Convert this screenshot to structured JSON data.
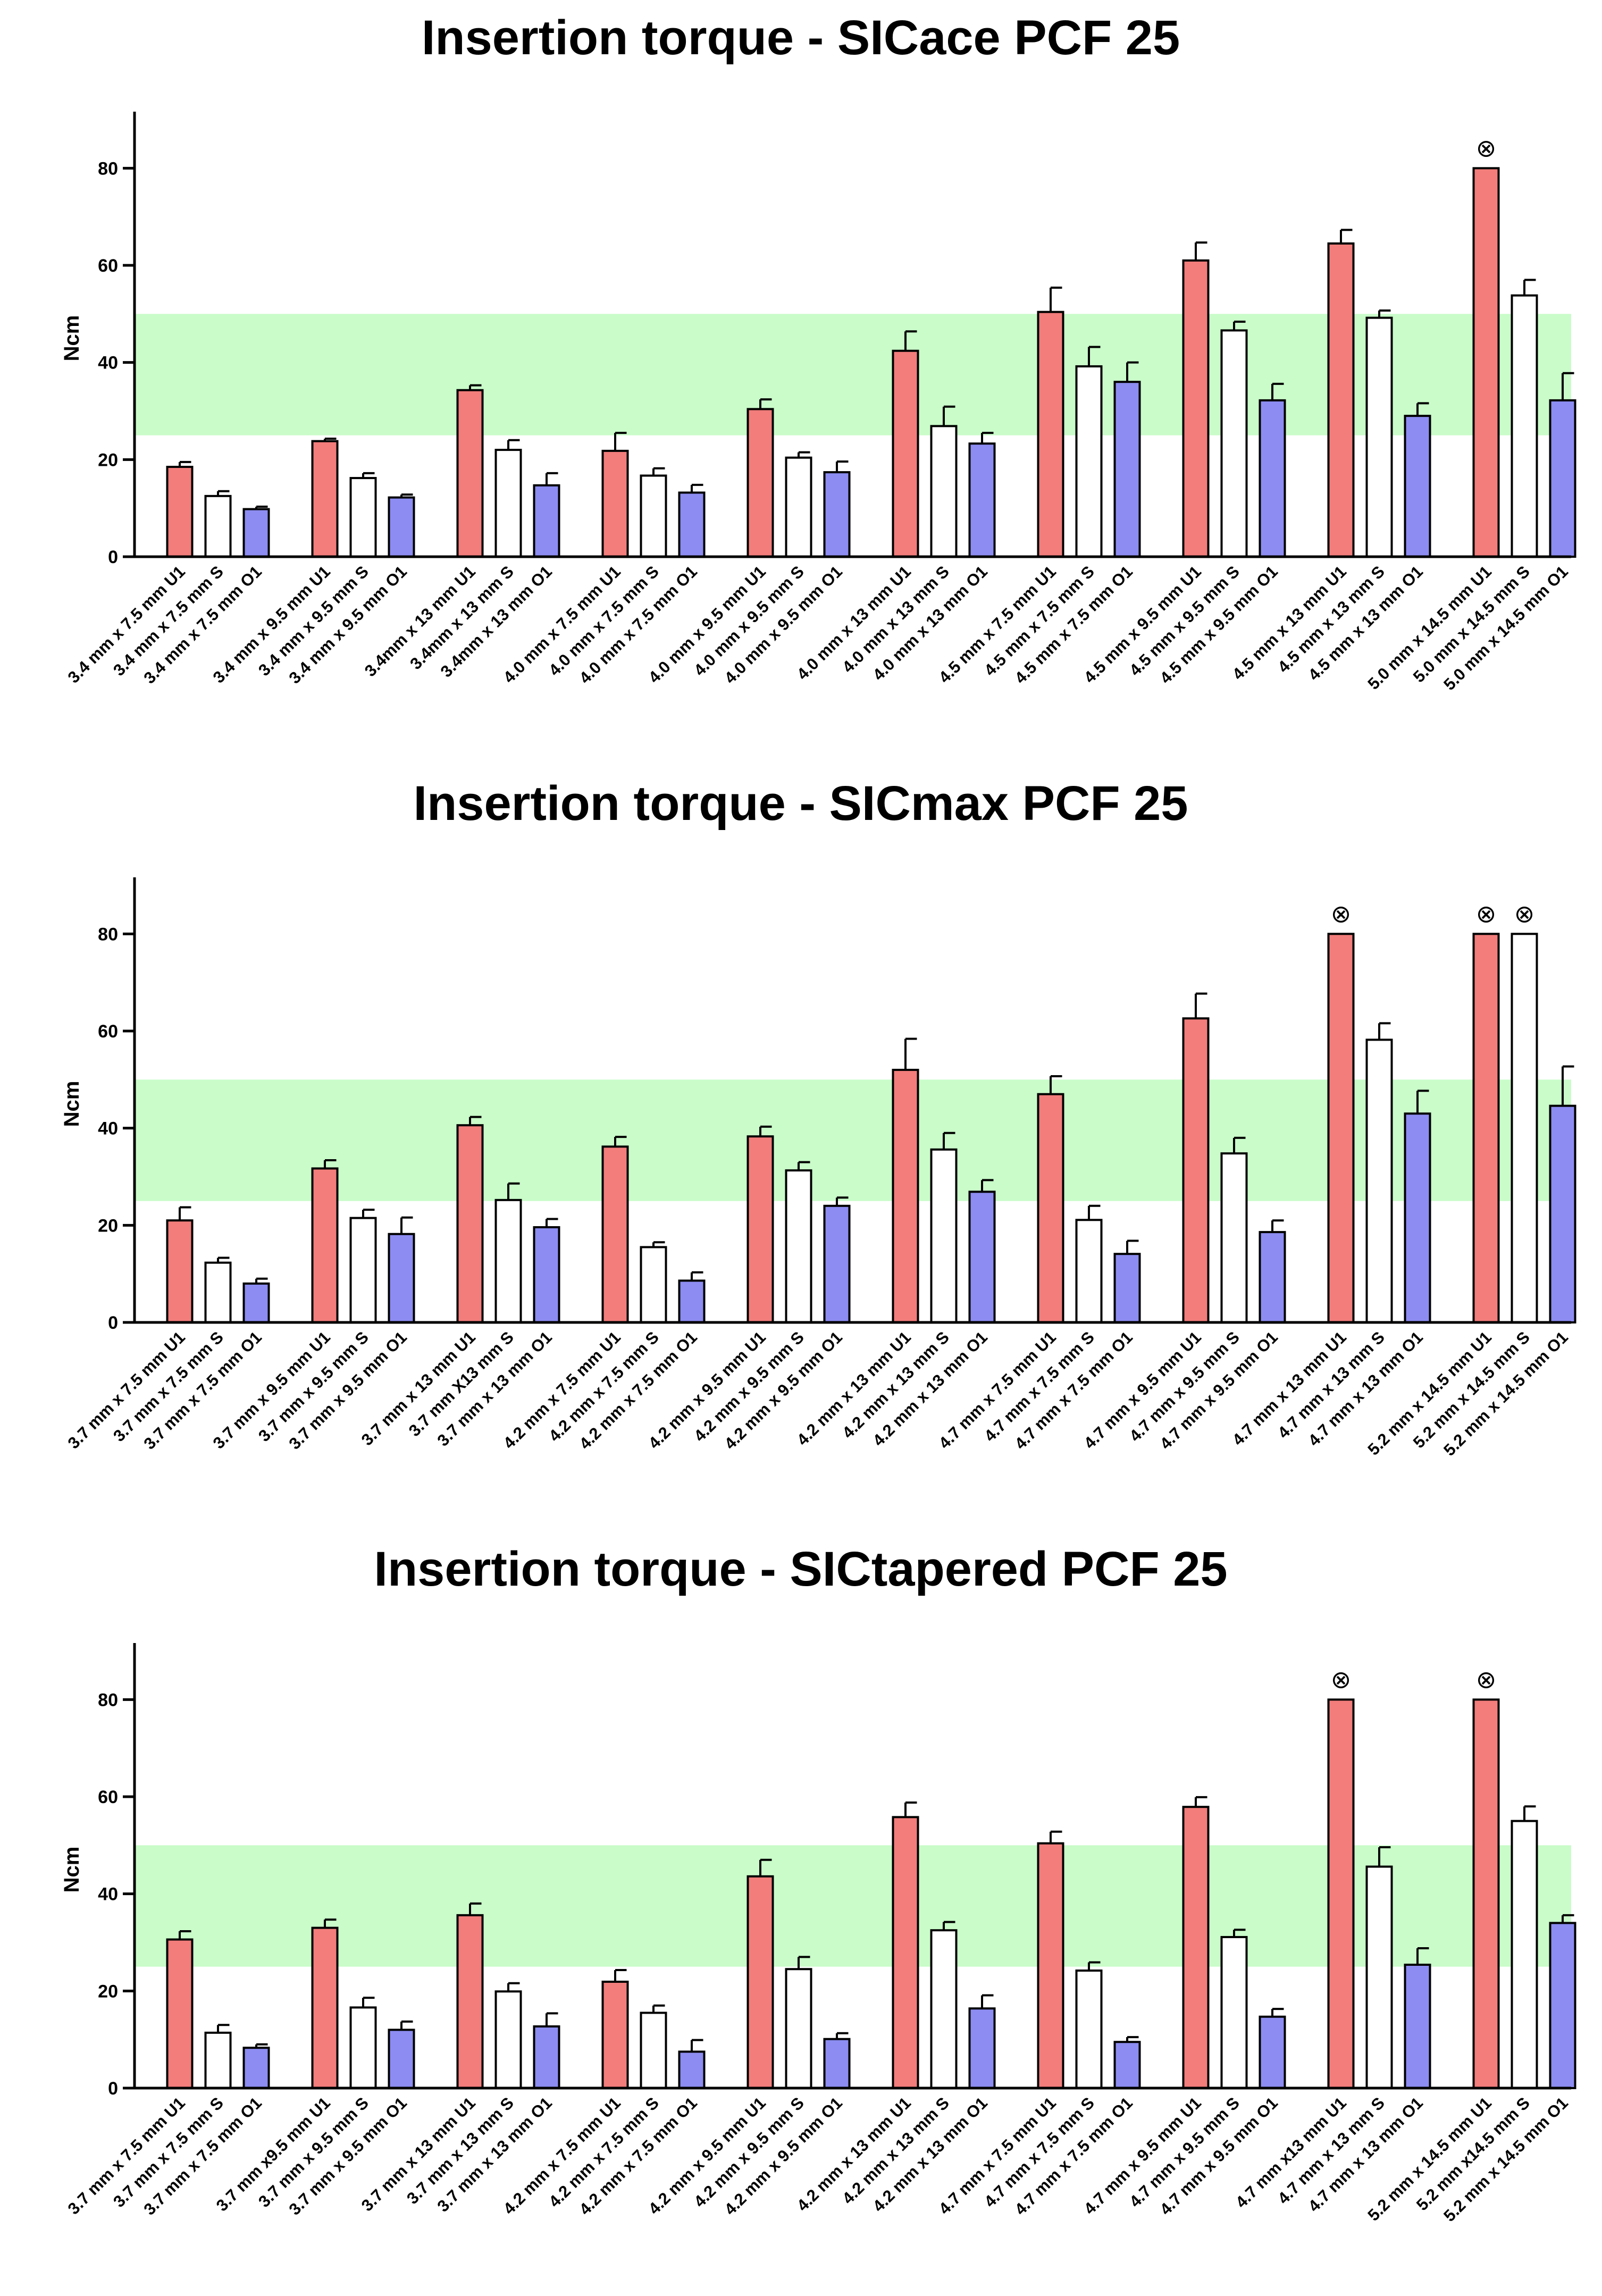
{
  "chart_data": [
    {
      "type": "bar",
      "title": "Insertion torque - SICace PCF 25",
      "ylabel": "Ncm",
      "ylim": [
        0,
        90
      ],
      "yticks": [
        0,
        20,
        40,
        60,
        80
      ],
      "band": [
        25,
        50
      ],
      "colors": {
        "U1": "#f27d7b",
        "S": "#ffffff",
        "O1": "#8c8cf2",
        "band": "#c9fcc9"
      },
      "categories": [
        "3.4 mm x 7.5 mm U1",
        "3.4 mm x 7.5 mm S",
        "3.4 mm x 7.5 mm O1",
        "3.4 mm x 9.5 mm U1",
        "3.4 mm x 9.5 mm S",
        "3.4 mm x 9.5 mm O1",
        "3.4mm x 13 mm U1",
        "3.4mm x 13 mm S",
        "3.4mm x 13 mm O1",
        "4.0 mm x 7.5 mm U1",
        "4.0 mm x 7.5 mm S",
        "4.0 mm x 7.5 mm O1",
        "4.0 mm x 9.5 mm U1",
        "4.0 mm x 9.5 mm S",
        "4.0 mm x 9.5 mm O1",
        "4.0 mm x 13 mm U1",
        "4.0 mm x 13 mm S",
        "4.0 mm x 13 mm O1",
        "4.5 mm x 7.5 mm U1",
        "4.5 mm x 7.5 mm S",
        "4.5 mm x 7.5 mm O1",
        "4.5 mm x 9.5 mm U1",
        "4.5 mm x 9.5 mm S",
        "4.5 mm x 9.5 mm O1",
        "4.5 mm x 13 mm U1",
        "4.5 mm x 13 mm S",
        "4.5 mm x 13 mm O1",
        "5.0 mm x 14.5 mm U1",
        "5.0 mm x 14.5 mm S",
        "5.0 mm x 14.5 mm O1"
      ],
      "values": [
        18.5,
        12.5,
        9.8,
        23.8,
        16.2,
        12.2,
        34.3,
        22,
        14.7,
        21.8,
        16.7,
        13.2,
        30.4,
        20.4,
        17.4,
        42.4,
        26.9,
        23.3,
        50.4,
        39.2,
        36,
        61,
        46.6,
        32.2,
        64.5,
        49.2,
        29,
        80,
        53.8,
        32.2
      ],
      "errors": [
        1,
        1,
        0.5,
        0.5,
        1,
        0.6,
        1,
        2,
        2.5,
        3.7,
        1.5,
        1.6,
        2,
        1.1,
        2.2,
        4,
        4,
        2.2,
        5,
        4,
        4,
        3.7,
        1.8,
        3.4,
        2.8,
        1.5,
        2.6,
        0,
        3.2,
        5.6
      ],
      "series_of_bars": [
        "U1",
        "S",
        "O1",
        "U1",
        "S",
        "O1",
        "U1",
        "S",
        "O1",
        "U1",
        "S",
        "O1",
        "U1",
        "S",
        "O1",
        "U1",
        "S",
        "O1",
        "U1",
        "S",
        "O1",
        "U1",
        "S",
        "O1",
        "U1",
        "S",
        "O1",
        "U1",
        "S",
        "O1"
      ],
      "markers": [
        27
      ],
      "marker_symbol": "⊗"
    },
    {
      "type": "bar",
      "title": "Insertion torque - SICmax PCF 25",
      "ylabel": "Ncm",
      "ylim": [
        0,
        90
      ],
      "yticks": [
        0,
        20,
        40,
        60,
        80
      ],
      "band": [
        25,
        50
      ],
      "colors": {
        "U1": "#f27d7b",
        "S": "#ffffff",
        "O1": "#8c8cf2",
        "band": "#c9fcc9"
      },
      "categories": [
        "3.7 mm x 7.5 mm U1",
        "3.7 mm x 7.5 mm S",
        "3.7 mm x 7.5 mm O1",
        "3.7 mm x 9.5 mm U1",
        "3.7 mm x 9.5 mm S",
        "3.7 mm x 9.5 mm O1",
        "3.7 mm x 13 mm U1",
        "3.7 mm X13 mm S",
        "3.7 mm  x 13 mm O1",
        "4.2 mm x 7.5 mm U1",
        "4.2 mm x 7.5 mm S",
        "4.2 mm x 7.5 mm O1",
        "4.2 mm x 9.5 mm U1",
        "4.2 mm x 9.5 mm S",
        "4.2 mm x 9.5 mm O1",
        "4.2 mm x 13 mm U1",
        "4.2 mm x 13 mm S",
        "4.2 mm x 13 mm O1",
        "4.7 mm x 7.5 mm U1",
        "4.7 mm x 7.5 mm S",
        "4.7 mm x 7.5 mm O1",
        "4.7 mm x 9.5 mm U1",
        "4.7 mm x 9.5 mm S",
        "4.7 mm x 9.5 mm O1",
        "4.7 mm x 13 mm U1",
        "4.7 mm x 13 mm S",
        "4.7 mm x 13 mm O1",
        "5.2 mm x 14.5 mm U1",
        "5.2 mm x 14.5 mm S",
        "5.2 mm x 14.5 mm O1"
      ],
      "values": [
        21,
        12.3,
        8,
        31.7,
        21.5,
        18.2,
        40.6,
        25.2,
        19.6,
        36.2,
        15.5,
        8.6,
        38.3,
        31.3,
        24,
        52,
        35.6,
        26.9,
        47,
        21.1,
        14.1,
        62.6,
        34.8,
        18.6,
        80,
        58.2,
        43,
        80,
        80,
        44.6
      ],
      "errors": [
        2.7,
        1,
        1,
        1.7,
        1.7,
        3.4,
        1.7,
        3.4,
        1.7,
        2,
        1,
        1.7,
        2,
        1.7,
        1.7,
        6.4,
        3.4,
        2.4,
        3.7,
        2.9,
        2.7,
        5.1,
        3.2,
        2.4,
        0,
        3.4,
        4.7,
        0,
        0,
        8.1
      ],
      "series_of_bars": [
        "U1",
        "S",
        "O1",
        "U1",
        "S",
        "O1",
        "U1",
        "S",
        "O1",
        "U1",
        "S",
        "O1",
        "U1",
        "S",
        "O1",
        "U1",
        "S",
        "O1",
        "U1",
        "S",
        "O1",
        "U1",
        "S",
        "O1",
        "U1",
        "S",
        "O1",
        "U1",
        "S",
        "O1"
      ],
      "markers": [
        24,
        27,
        28
      ],
      "marker_symbol": "⊗"
    },
    {
      "type": "bar",
      "title": "Insertion torque - SICtapered PCF 25",
      "ylabel": "Ncm",
      "ylim": [
        0,
        90
      ],
      "yticks": [
        0,
        20,
        40,
        60,
        80
      ],
      "band": [
        25,
        50
      ],
      "colors": {
        "U1": "#f27d7b",
        "S": "#ffffff",
        "O1": "#8c8cf2",
        "band": "#c9fcc9"
      },
      "categories": [
        "3.7 mm x 7.5 mm U1",
        "3.7 mm x 7.5 mm S",
        "3.7 mm x 7.5 mm O1",
        "3.7 mm x9.5 mm U1",
        "3.7 mm x 9.5 mm S",
        "3.7 mm x 9.5 mm O1",
        "3.7 mm x 13 mm U1",
        "3.7 mm x 13 mm S",
        "3.7 mm x 13 mm O1",
        "4.2 mm x 7.5 mm U1",
        "4.2 mm x 7.5 mm S",
        "4.2 mm x 7.5 mm O1",
        "4.2 mm x 9.5 mm U1",
        "4.2 mm x 9.5 mm S",
        "4.2 mm x 9.5 mm O1",
        "4.2 mm x 13 mm U1",
        "4.2 mm x 13 mm S",
        "4.2 mm x 13 mm O1",
        "4.7 mm x 7.5 mm U1",
        "4.7 mm x 7.5 mm S",
        "4.7 mm x 7.5 mm O1",
        "4.7 mm x 9.5 mm U1",
        "4.7 mm x 9.5 mm S",
        "4.7 mm x 9.5 mm O1",
        "4.7 mm x13 mm U1",
        "4.7 mm x 13 mm S",
        "4.7 mm x 13 mm O1",
        "5.2 mm x 14.5 mm U1",
        "5.2 mm x14.5 mm S",
        "5.2 mm x 14.5 mm O1"
      ],
      "values": [
        30.6,
        11.4,
        8.3,
        33,
        16.6,
        12,
        35.6,
        19.9,
        12.7,
        21.9,
        15.5,
        7.5,
        43.6,
        24.5,
        10.1,
        55.8,
        32.5,
        16.4,
        50.4,
        24.2,
        9.5,
        57.9,
        31.1,
        14.7,
        80,
        45.6,
        25.4,
        80,
        55,
        34
      ],
      "errors": [
        1.7,
        1.6,
        0.7,
        1.7,
        2,
        1.7,
        2.4,
        1.7,
        2.7,
        2.4,
        1.5,
        2.4,
        3.4,
        2.5,
        1.2,
        3,
        1.7,
        2.7,
        2.4,
        1.7,
        1,
        2,
        1.5,
        1.6,
        0,
        4,
        3.4,
        0,
        3,
        1.6
      ],
      "series_of_bars": [
        "U1",
        "S",
        "O1",
        "U1",
        "S",
        "O1",
        "U1",
        "S",
        "O1",
        "U1",
        "S",
        "O1",
        "U1",
        "S",
        "O1",
        "U1",
        "S",
        "O1",
        "U1",
        "S",
        "O1",
        "U1",
        "S",
        "O1",
        "U1",
        "S",
        "O1",
        "U1",
        "S",
        "O1"
      ],
      "markers": [
        24,
        27
      ],
      "marker_symbol": "⊗"
    }
  ]
}
